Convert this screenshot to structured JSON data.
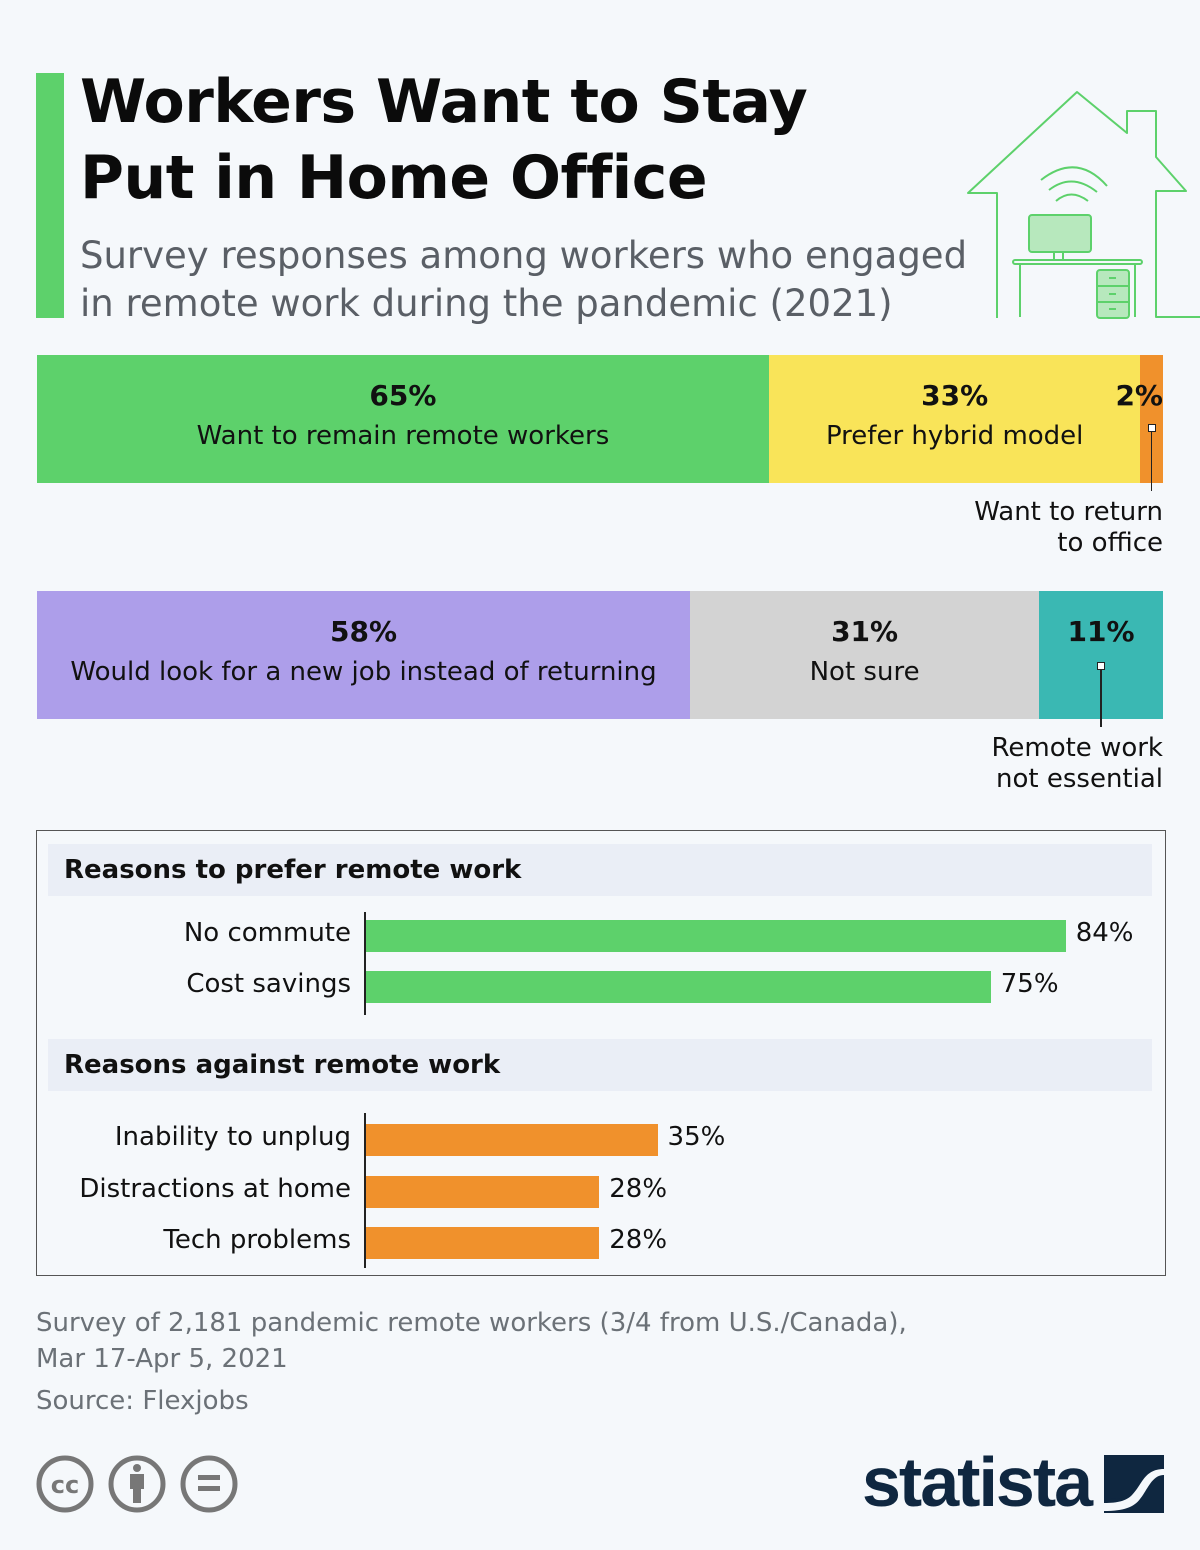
{
  "title_lines": [
    "Workers Want to Stay",
    "Put in Home Office"
  ],
  "subtitle_lines": [
    "Survey responses among workers who engaged",
    "in remote work during the pandemic (2021)"
  ],
  "chart_data": [
    {
      "type": "stacked-bar",
      "segments": [
        {
          "value": 65,
          "pct": "65%",
          "label": "Want to remain remote workers",
          "color": "#5dd16b"
        },
        {
          "value": 33,
          "pct": "33%",
          "label": "Prefer hybrid model",
          "color": "#f9e459"
        },
        {
          "value": 2,
          "pct": "2%",
          "label_lines": [
            "Want to return",
            "to office"
          ],
          "color": "#f0912c"
        }
      ]
    },
    {
      "type": "stacked-bar",
      "segments": [
        {
          "value": 58,
          "pct": "58%",
          "label": "Would look for a new job instead of returning",
          "color": "#ad9eea"
        },
        {
          "value": 31,
          "pct": "31%",
          "label": "Not sure",
          "color": "#d3d3d3"
        },
        {
          "value": 11,
          "pct": "11%",
          "label_lines": [
            "Remote work",
            "not essential"
          ],
          "color": "#3ab8b3"
        }
      ]
    },
    {
      "type": "bar",
      "title": "Reasons to prefer remote work",
      "categories": [
        "No commute",
        "Cost savings"
      ],
      "values": [
        84,
        75
      ],
      "value_labels": [
        "84%",
        "75%"
      ],
      "color": "#5dd16b"
    },
    {
      "type": "bar",
      "title": "Reasons against remote work",
      "categories": [
        "Inability to unplug",
        "Distractions at home",
        "Tech problems"
      ],
      "values": [
        35,
        28,
        28
      ],
      "value_labels": [
        "35%",
        "28%",
        "28%"
      ],
      "color": "#f0912c"
    }
  ],
  "footer": {
    "note_lines": [
      "Survey of 2,181 pandemic remote workers (3/4 from U.S./Canada),",
      "Mar 17-Apr 5, 2021"
    ],
    "source": "Source: Flexjobs",
    "license_icons": [
      "cc-icon",
      "attribution-icon",
      "no-derivatives-icon"
    ],
    "brand": "statista"
  }
}
